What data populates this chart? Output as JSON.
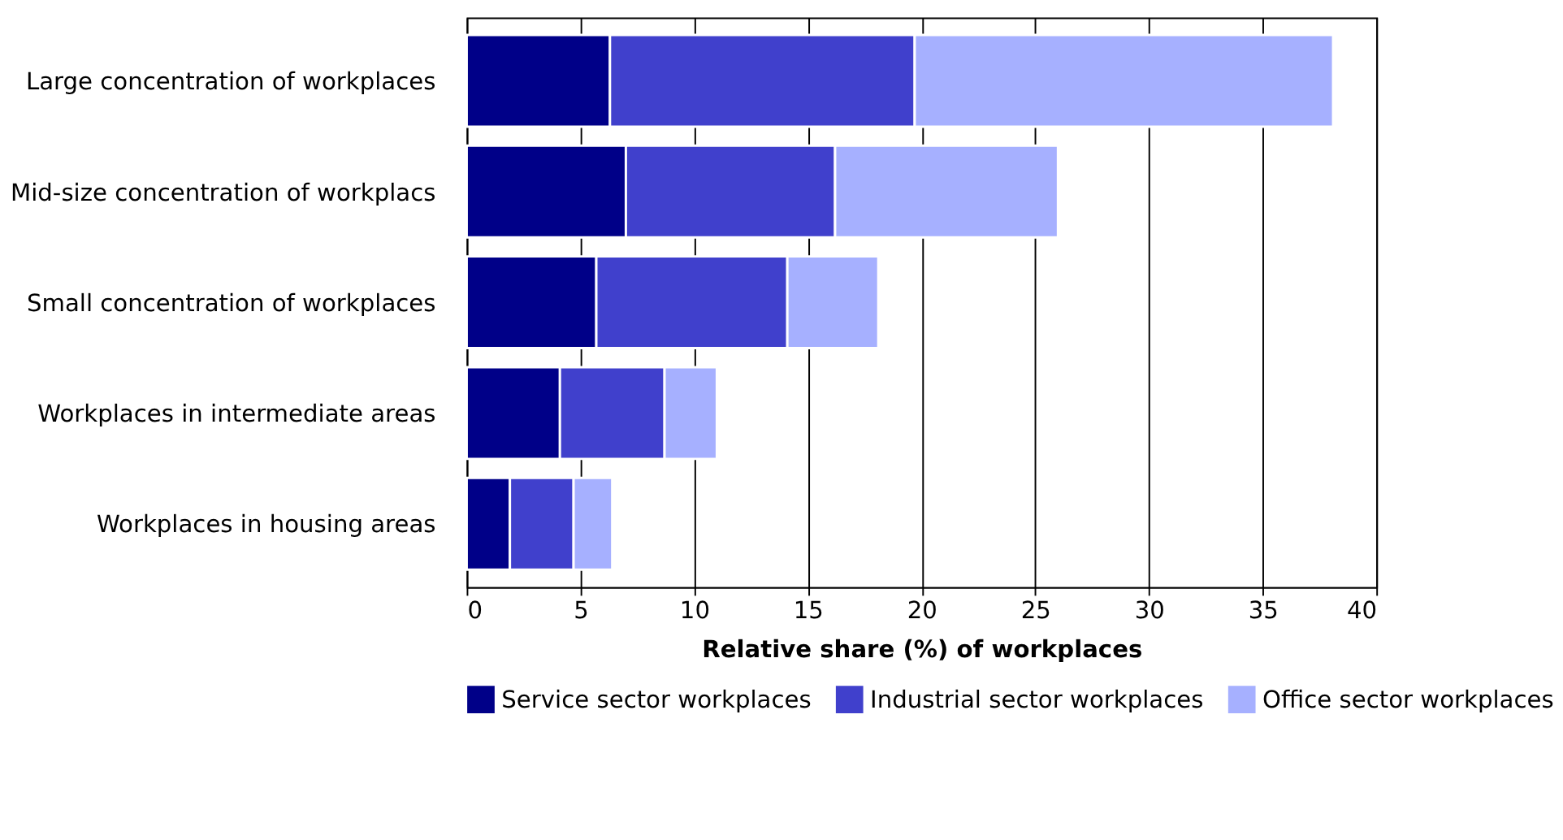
{
  "chart_data": {
    "type": "bar",
    "orientation": "horizontal",
    "stacked": true,
    "categories": [
      "Large concentration of workplaces",
      "Mid-size concentration of workplacs",
      "Small concentration of workplaces",
      "Workplaces in intermediate areas",
      "Workplaces in housing areas"
    ],
    "series": [
      {
        "name": "Service sector workplaces",
        "color": "#000088",
        "values": [
          6.3,
          7.0,
          5.7,
          4.1,
          1.9
        ]
      },
      {
        "name": "Industrial sector workplaces",
        "color": "#4040cc",
        "values": [
          13.4,
          9.2,
          8.4,
          4.6,
          2.8
        ]
      },
      {
        "name": "Office sector workplaces",
        "color": "#a6b0ff",
        "values": [
          18.4,
          9.8,
          4.0,
          2.3,
          1.7
        ]
      }
    ],
    "xlabel": "Relative share (%) of workplaces",
    "xlim": [
      0,
      40
    ],
    "xticks": [
      0,
      5,
      10,
      15,
      20,
      25,
      30,
      35,
      40
    ],
    "grid": "x",
    "legend": "bottom"
  }
}
